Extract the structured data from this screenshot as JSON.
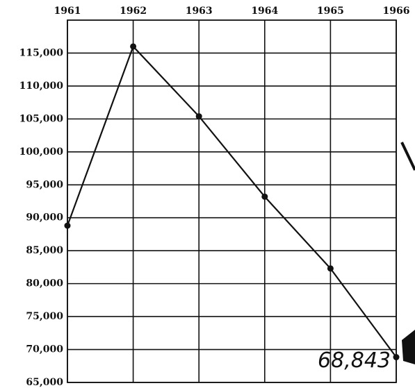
{
  "chart_data": {
    "type": "line",
    "x": [
      1961,
      1962,
      1963,
      1964,
      1965,
      1966
    ],
    "series": [
      {
        "color": "#111111",
        "values": [
          88800,
          116000,
          105400,
          93200,
          82300,
          68843
        ],
        "value_labels": [
          null,
          null,
          null,
          null,
          null,
          "68,843"
        ]
      }
    ],
    "xlim": [
      1961,
      1966
    ],
    "xticks": [
      1961,
      1962,
      1963,
      1964,
      1965,
      1966
    ],
    "ylim": [
      65000,
      120000
    ],
    "yticks": [
      {
        "value": 65000,
        "label": "65,000"
      },
      {
        "value": 70000,
        "label": "70,000"
      },
      {
        "value": 75000,
        "label": "75,000"
      },
      {
        "value": 80000,
        "label": "80,000"
      },
      {
        "value": 85000,
        "label": "85,000"
      },
      {
        "value": 90000,
        "label": "90,000"
      },
      {
        "value": 95000,
        "label": "95,000"
      },
      {
        "value": 100000,
        "label": "100,000"
      },
      {
        "value": 105000,
        "label": "105,000"
      },
      {
        "value": 110000,
        "label": "110,000"
      },
      {
        "value": 115000,
        "label": "115,000"
      }
    ],
    "grid": true
  }
}
